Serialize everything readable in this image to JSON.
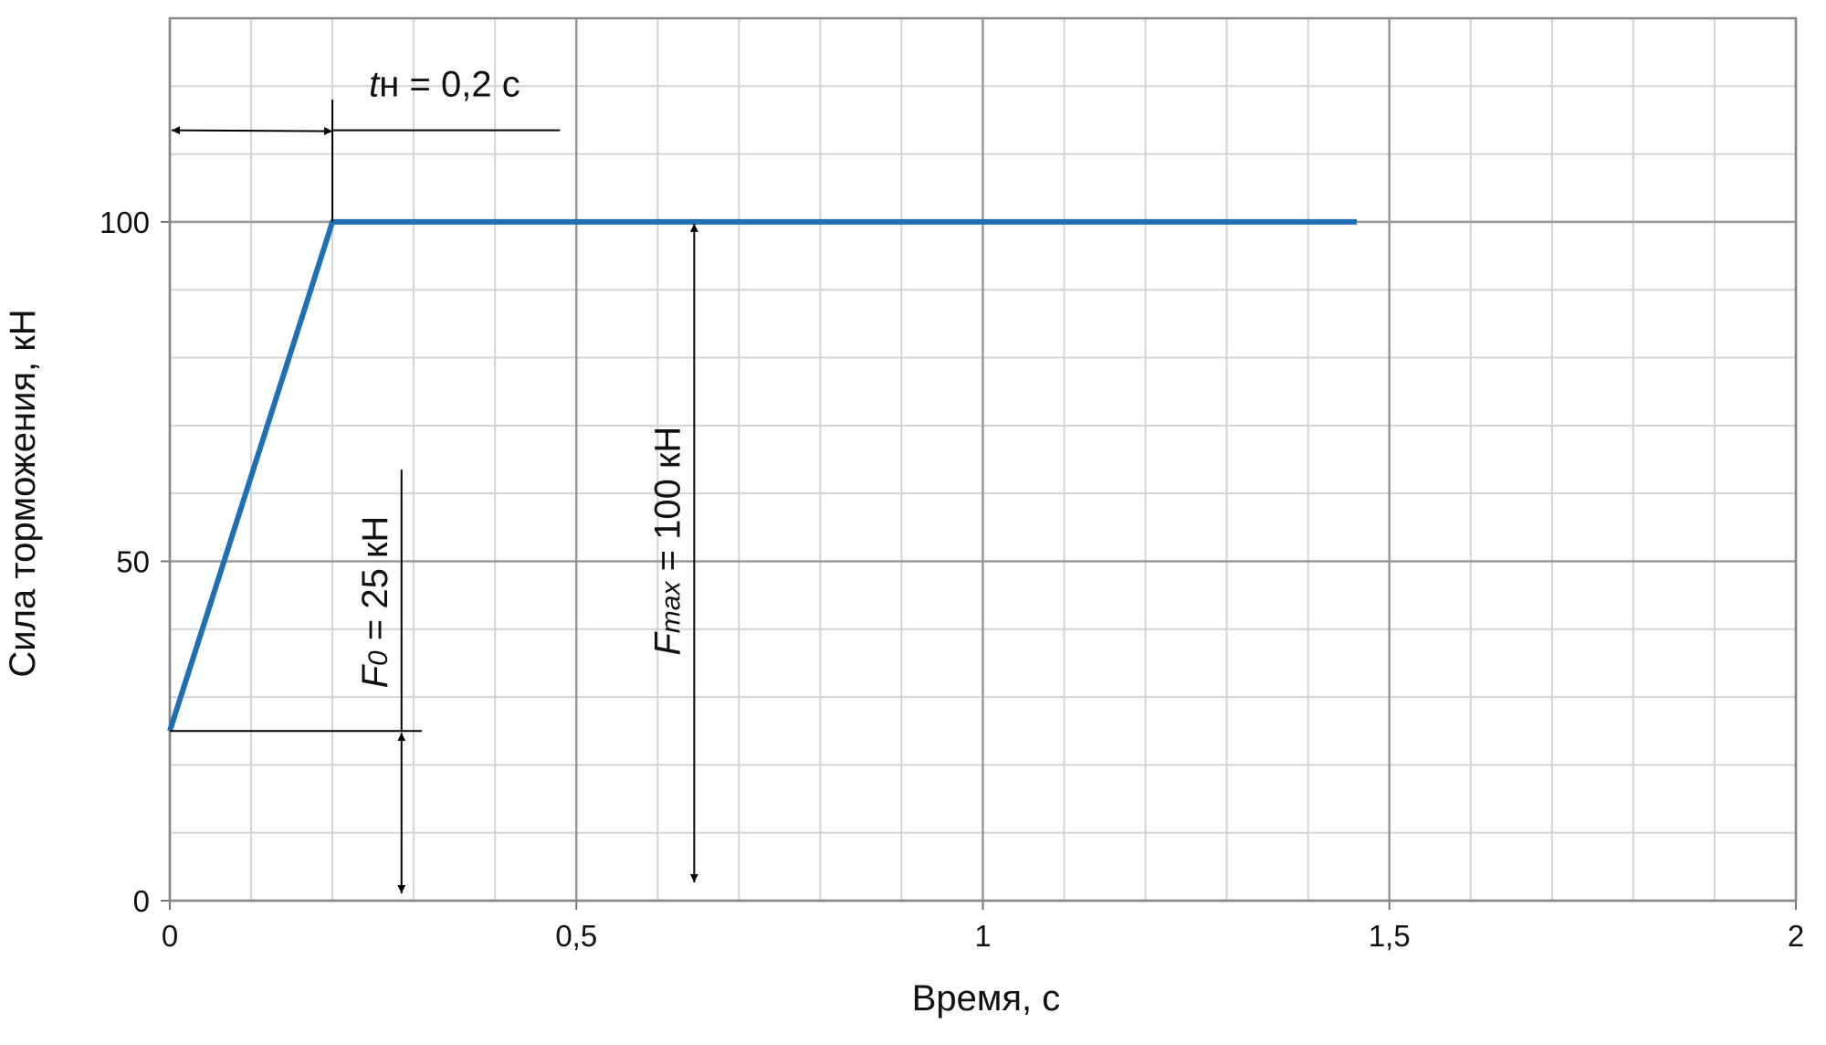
{
  "chart_data": {
    "type": "line",
    "x_label": "Время, с",
    "y_label": "Сила торможения, кН",
    "x": [
      0,
      0.2,
      1.46
    ],
    "values": [
      25,
      100,
      100
    ],
    "color": "#1f6fb4",
    "xlim": [
      0,
      2
    ],
    "ylim": [
      0,
      130
    ],
    "xticks": [
      0,
      {
        "value": 0.5,
        "label": "0,5"
      },
      1,
      {
        "value": 1.5,
        "label": "1,5"
      },
      2
    ],
    "yticks": [
      0,
      50,
      100
    ],
    "grid": true,
    "annotations": [
      {
        "parts": [
          "t",
          "н = 0,2 с"
        ]
      },
      {
        "parts": [
          "F",
          "0",
          " = 25 кН"
        ]
      },
      {
        "parts": [
          "F",
          "max",
          " = 100 кН"
        ]
      }
    ]
  }
}
